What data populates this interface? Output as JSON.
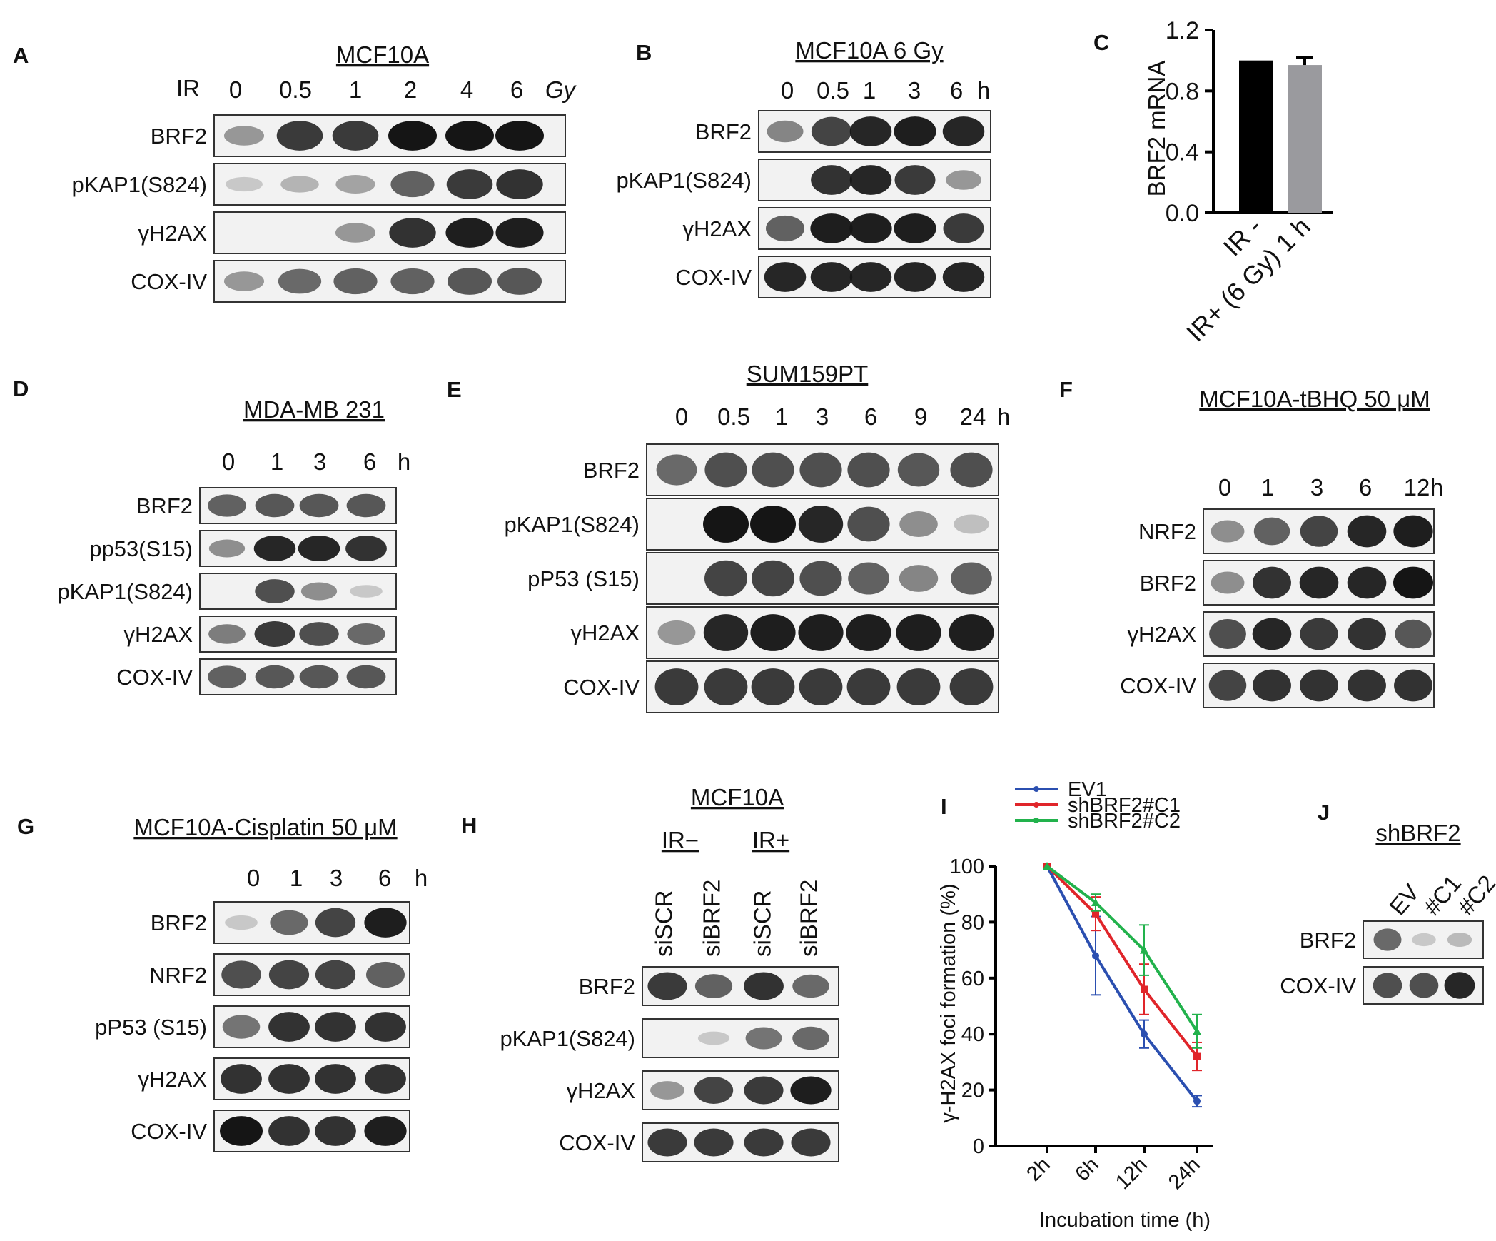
{
  "colors": {
    "ev1": "#2b4fb0",
    "shC1": "#e0252a",
    "shC2": "#22b24c",
    "bar_minus": "#000000",
    "bar_plus": "#9a9a9e",
    "band": "#151515",
    "blot_bg": "#f2f2f2"
  },
  "panel_a": {
    "letter": "A",
    "title": "MCF10A",
    "row_label": "IR",
    "lanes": [
      "0",
      "0.5",
      "1",
      "2",
      "4",
      "6"
    ],
    "unit": "Gy",
    "blots": [
      {
        "label": "BRF2",
        "levels": [
          0.3,
          0.8,
          0.8,
          1.0,
          1.0,
          1.0
        ]
      },
      {
        "label": "pKAP1(S824)",
        "levels": [
          0.05,
          0.15,
          0.25,
          0.6,
          0.8,
          0.85
        ]
      },
      {
        "label": "γH2AX",
        "levels": [
          0.0,
          0.0,
          0.3,
          0.85,
          0.95,
          0.95
        ]
      },
      {
        "label": "COX-IV",
        "levels": [
          0.3,
          0.55,
          0.6,
          0.6,
          0.65,
          0.65
        ]
      }
    ]
  },
  "panel_b": {
    "letter": "B",
    "title": "MCF10A 6 Gy",
    "lanes": [
      "0",
      "0.5",
      "1",
      "3",
      "6"
    ],
    "unit": "h",
    "blots": [
      {
        "label": "BRF2",
        "levels": [
          0.4,
          0.75,
          0.9,
          0.95,
          0.9
        ]
      },
      {
        "label": "pKAP1(S824)",
        "levels": [
          0.0,
          0.85,
          0.9,
          0.8,
          0.3
        ]
      },
      {
        "label": "γH2AX",
        "levels": [
          0.6,
          0.95,
          0.95,
          0.95,
          0.8
        ]
      },
      {
        "label": "COX-IV",
        "levels": [
          0.9,
          0.9,
          0.9,
          0.9,
          0.9
        ]
      }
    ]
  },
  "panel_c": {
    "letter": "C",
    "chart_data": {
      "type": "bar",
      "categories": [
        "IR -",
        "IR+ (6 Gy) 1 h"
      ],
      "values": [
        1.0,
        0.97
      ],
      "errors": [
        0.0,
        0.05
      ],
      "ylabel": "BRF2 mRNA",
      "ylim": [
        0.0,
        1.2
      ],
      "yticks": [
        "0.0",
        "0.4",
        "0.8",
        "1.2"
      ]
    }
  },
  "panel_d": {
    "letter": "D",
    "title": "MDA-MB 231",
    "lanes": [
      "0",
      "1",
      "3",
      "6"
    ],
    "unit": "h",
    "blots": [
      {
        "label": "BRF2",
        "levels": [
          0.6,
          0.65,
          0.65,
          0.65
        ]
      },
      {
        "label": "pp53(S15)",
        "levels": [
          0.35,
          0.9,
          0.9,
          0.85
        ]
      },
      {
        "label": "pKAP1(S824)",
        "levels": [
          0.0,
          0.7,
          0.35,
          0.05
        ]
      },
      {
        "label": "γH2AX",
        "levels": [
          0.45,
          0.8,
          0.7,
          0.55
        ]
      },
      {
        "label": "COX-IV",
        "levels": [
          0.6,
          0.65,
          0.65,
          0.65
        ]
      }
    ]
  },
  "panel_e": {
    "letter": "E",
    "title": "SUM159PT",
    "lanes": [
      "0",
      "0.5",
      "1",
      "3",
      "6",
      "9",
      "24"
    ],
    "unit": "h",
    "blots": [
      {
        "label": "BRF2",
        "levels": [
          0.55,
          0.7,
          0.7,
          0.7,
          0.7,
          0.65,
          0.7
        ]
      },
      {
        "label": "pKAP1(S824)",
        "levels": [
          0.0,
          1.0,
          1.0,
          0.9,
          0.7,
          0.35,
          0.1
        ]
      },
      {
        "label": "pP53 (S15)",
        "levels": [
          0.0,
          0.75,
          0.75,
          0.7,
          0.6,
          0.4,
          0.6
        ]
      },
      {
        "label": "γH2AX",
        "levels": [
          0.3,
          0.9,
          0.95,
          0.95,
          0.95,
          0.95,
          0.95
        ]
      },
      {
        "label": "COX-IV",
        "levels": [
          0.8,
          0.8,
          0.8,
          0.8,
          0.8,
          0.8,
          0.8
        ]
      }
    ]
  },
  "panel_f": {
    "letter": "F",
    "title": "MCF10A-tBHQ 50 μM",
    "lanes": [
      "0",
      "1",
      "3",
      "6",
      "12"
    ],
    "unit": "h",
    "blots": [
      {
        "label": "NRF2",
        "levels": [
          0.35,
          0.6,
          0.75,
          0.9,
          0.95
        ]
      },
      {
        "label": "BRF2",
        "levels": [
          0.35,
          0.85,
          0.9,
          0.9,
          1.0
        ]
      },
      {
        "label": "γH2AX",
        "levels": [
          0.7,
          0.9,
          0.8,
          0.85,
          0.65
        ]
      },
      {
        "label": "COX-IV",
        "levels": [
          0.75,
          0.85,
          0.85,
          0.85,
          0.85
        ]
      }
    ]
  },
  "panel_g": {
    "letter": "G",
    "title": "MCF10A-Cisplatin  50 μM",
    "lanes": [
      "0",
      "1",
      "3",
      "6"
    ],
    "unit": "h",
    "blots": [
      {
        "label": "BRF2",
        "levels": [
          0.05,
          0.55,
          0.75,
          0.95
        ]
      },
      {
        "label": "NRF2",
        "levels": [
          0.7,
          0.75,
          0.75,
          0.6
        ]
      },
      {
        "label": "pP53 (S15)",
        "levels": [
          0.5,
          0.85,
          0.85,
          0.85
        ]
      },
      {
        "label": "γH2AX",
        "levels": [
          0.85,
          0.85,
          0.85,
          0.85
        ]
      },
      {
        "label": "COX-IV",
        "levels": [
          1.0,
          0.85,
          0.85,
          0.95
        ]
      }
    ]
  },
  "panel_h": {
    "letter": "H",
    "title": "MCF10A",
    "groups": [
      "IR−",
      "IR+"
    ],
    "lanes": [
      "siSCR",
      "siBRF2",
      "siSCR",
      "siBRF2"
    ],
    "blots": [
      {
        "label": "BRF2",
        "levels": [
          0.8,
          0.6,
          0.85,
          0.55
        ]
      },
      {
        "label": "pKAP1(S824)",
        "levels": [
          0.0,
          0.05,
          0.5,
          0.55
        ]
      },
      {
        "label": "γH2AX",
        "levels": [
          0.3,
          0.75,
          0.8,
          0.95
        ]
      },
      {
        "label": "COX-IV",
        "levels": [
          0.8,
          0.8,
          0.8,
          0.8
        ]
      }
    ]
  },
  "panel_i": {
    "letter": "I",
    "chart_data": {
      "type": "line",
      "x": [
        "2h",
        "6h",
        "12h",
        "24h"
      ],
      "series": [
        {
          "name": "EV1",
          "values": [
            100,
            68,
            40,
            16
          ],
          "errors": [
            0,
            14,
            5,
            2
          ]
        },
        {
          "name": "shBRF2#C1",
          "values": [
            100,
            83,
            56,
            32
          ],
          "errors": [
            0,
            6,
            9,
            5
          ]
        },
        {
          "name": "shBRF2#C2",
          "values": [
            100,
            87,
            70,
            41
          ],
          "errors": [
            0,
            3,
            9,
            6
          ]
        }
      ],
      "xlabel": "Incubation time (h)",
      "ylabel": "γ-H2AX foci formation (%)",
      "ylim": [
        0,
        100
      ],
      "yticks": [
        "0",
        "20",
        "40",
        "60",
        "80",
        "100"
      ],
      "legend_position": "top"
    }
  },
  "panel_j": {
    "letter": "J",
    "title": "shBRF2",
    "lanes": [
      "EV",
      "#C1",
      "#C2"
    ],
    "blots": [
      {
        "label": "BRF2",
        "levels": [
          0.55,
          0.05,
          0.12
        ]
      },
      {
        "label": "COX-IV",
        "levels": [
          0.7,
          0.7,
          0.9
        ]
      }
    ]
  }
}
